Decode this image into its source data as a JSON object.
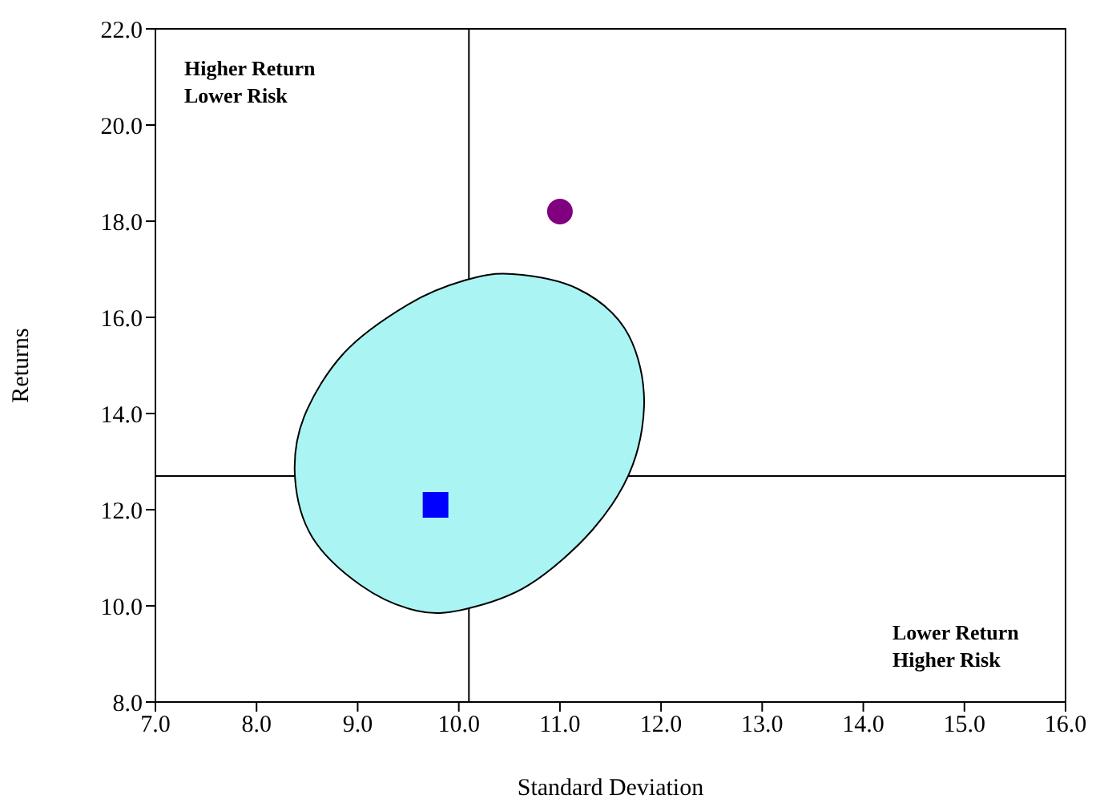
{
  "chart_data": {
    "type": "scatter",
    "xlabel": "Standard Deviation",
    "ylabel": "Returns",
    "xlim": [
      7,
      16
    ],
    "xticks": [
      {
        "value": 7,
        "label": "7.0"
      },
      {
        "value": 8,
        "label": "8.0"
      },
      {
        "value": 9,
        "label": "9.0"
      },
      {
        "value": 10,
        "label": "10.0"
      },
      {
        "value": 11,
        "label": "11.0"
      },
      {
        "value": 12,
        "label": "12.0"
      },
      {
        "value": 13,
        "label": "13.0"
      },
      {
        "value": 14,
        "label": "14.0"
      },
      {
        "value": 15,
        "label": "15.0"
      },
      {
        "value": 16,
        "label": "16.0"
      }
    ],
    "ylim": [
      8,
      22
    ],
    "yticks": [
      {
        "value": 8,
        "label": "8.0"
      },
      {
        "value": 10,
        "label": "10.0"
      },
      {
        "value": 12,
        "label": "12.0"
      },
      {
        "value": 14,
        "label": "14.0"
      },
      {
        "value": 16,
        "label": "16.0"
      },
      {
        "value": 18,
        "label": "18.0"
      },
      {
        "value": 20,
        "label": "20.0"
      },
      {
        "value": 22,
        "label": "22.0"
      }
    ],
    "grid": false,
    "legend": false,
    "series": [
      {
        "type": "area",
        "color": "#aaf4f4",
        "x": [
          10.53,
          11.17,
          11.64,
          11.83,
          11.72,
          11.33,
          10.69,
          10.06,
          9.58,
          9.03,
          8.55,
          8.38,
          8.47,
          8.87,
          9.5,
          10.06,
          10.53
        ],
        "values": [
          16.9,
          16.6,
          15.77,
          14.43,
          12.93,
          11.6,
          10.43,
          9.93,
          9.9,
          10.43,
          11.43,
          12.67,
          13.93,
          15.27,
          16.27,
          16.77,
          16.9
        ]
      },
      {
        "type": "scatter",
        "marker": "circle",
        "color": "#800080",
        "x": [
          11.0
        ],
        "values": [
          18.2
        ]
      },
      {
        "type": "scatter",
        "marker": "square",
        "color": "#0000ff",
        "x": [
          9.77
        ],
        "values": [
          12.1
        ]
      }
    ],
    "ref_lines": [
      {
        "axis": "x",
        "value": 10.1,
        "color": "#000000"
      },
      {
        "axis": "y",
        "value": 12.7,
        "color": "#000000"
      }
    ],
    "annotations": [
      "Higher Return\nLower Risk",
      "Lower Return\nHigher Risk"
    ]
  }
}
